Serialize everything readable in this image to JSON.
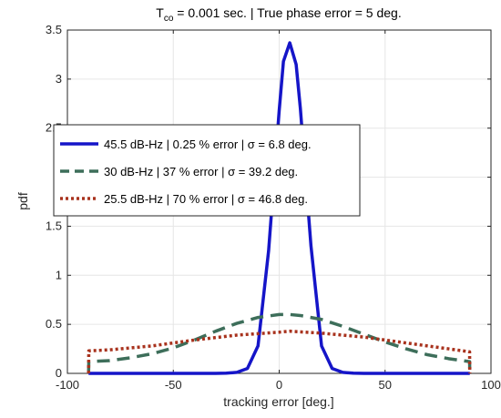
{
  "chart_data": {
    "type": "line",
    "title": {
      "main": "T",
      "sub": "co",
      "rest": " = 0.001 sec.  |  True phase error = 5 deg."
    },
    "xlabel": "tracking error [deg.]",
    "ylabel": "pdf",
    "xlim": [
      -100,
      100
    ],
    "ylim": [
      0,
      3.5
    ],
    "xticks": [
      -100,
      -50,
      0,
      50,
      100
    ],
    "yticks": [
      0,
      0.5,
      1,
      1.5,
      2,
      2.5,
      3,
      3.5
    ],
    "grid": true,
    "legend_position": "upper-left",
    "series": [
      {
        "name": "45.5 dB-Hz  |  0.25 % error  | σ = 6.8 deg.",
        "color": "#1515c8",
        "dash": "solid",
        "x": [
          -90,
          -40,
          -30,
          -25,
          -20,
          -15,
          -10,
          -5,
          0,
          2,
          5,
          8,
          10,
          15,
          20,
          25,
          30,
          35,
          40,
          50,
          90
        ],
        "y": [
          0,
          0,
          0,
          0.002,
          0.01,
          0.05,
          0.28,
          1.25,
          2.68,
          3.18,
          3.37,
          3.15,
          2.7,
          1.3,
          0.28,
          0.05,
          0.01,
          0.002,
          0,
          0,
          0
        ]
      },
      {
        "name": "30 dB-Hz  |  37 % error  | σ = 39.2 deg.",
        "color": "#3d6e5a",
        "dash": "dashed",
        "x": [
          -90,
          -89.9,
          -80,
          -70,
          -60,
          -50,
          -40,
          -30,
          -20,
          -10,
          0,
          5,
          10,
          20,
          30,
          40,
          50,
          60,
          70,
          80,
          89.9,
          90
        ],
        "y": [
          0,
          0.12,
          0.13,
          0.16,
          0.2,
          0.26,
          0.34,
          0.43,
          0.51,
          0.57,
          0.6,
          0.6,
          0.59,
          0.55,
          0.48,
          0.4,
          0.32,
          0.25,
          0.19,
          0.15,
          0.12,
          0
        ]
      },
      {
        "name": "25.5 dB-Hz  |  70 % error  | σ = 46.8 deg.",
        "color": "#a8321d",
        "dash": "dotted",
        "x": [
          -90,
          -89.9,
          -80,
          -60,
          -40,
          -20,
          0,
          5,
          20,
          40,
          60,
          80,
          89.9,
          90
        ],
        "y": [
          0,
          0.23,
          0.24,
          0.28,
          0.34,
          0.39,
          0.42,
          0.43,
          0.41,
          0.37,
          0.31,
          0.25,
          0.22,
          0
        ]
      }
    ]
  }
}
